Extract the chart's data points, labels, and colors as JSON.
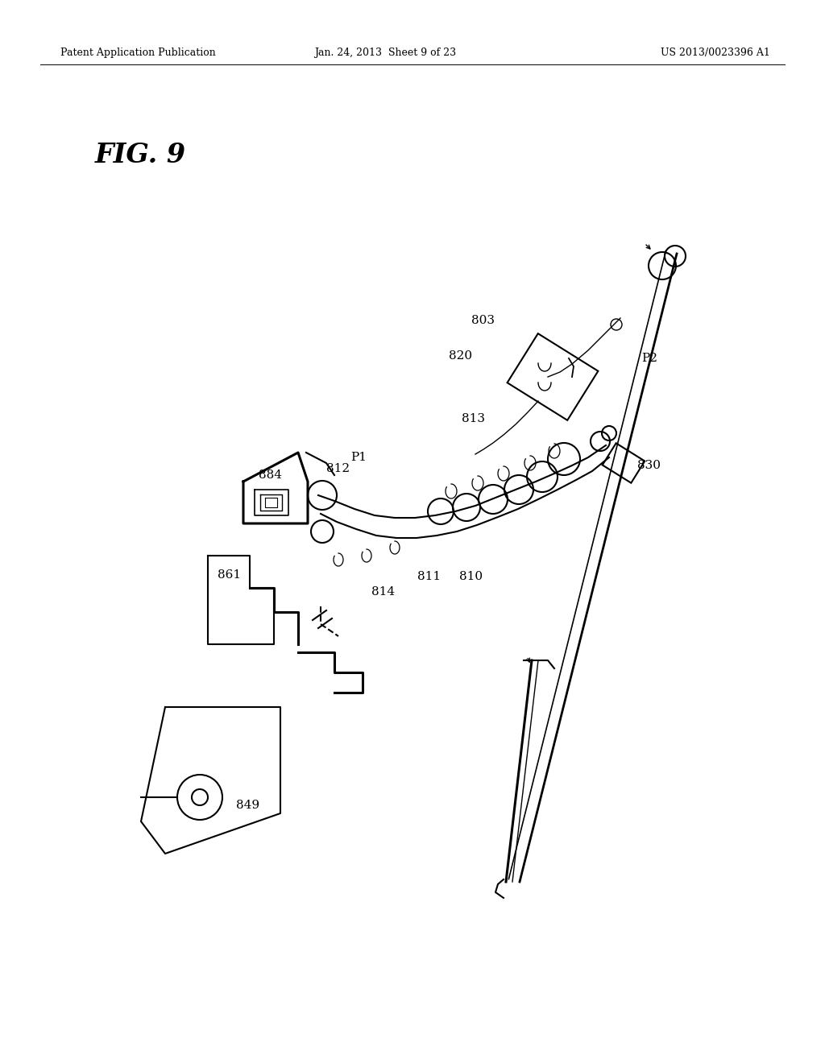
{
  "bg_color": "#ffffff",
  "header_left": "Patent Application Publication",
  "header_center": "Jan. 24, 2013  Sheet 9 of 23",
  "header_right": "US 2013/0023396 A1",
  "fig_label": "FIG. 9"
}
